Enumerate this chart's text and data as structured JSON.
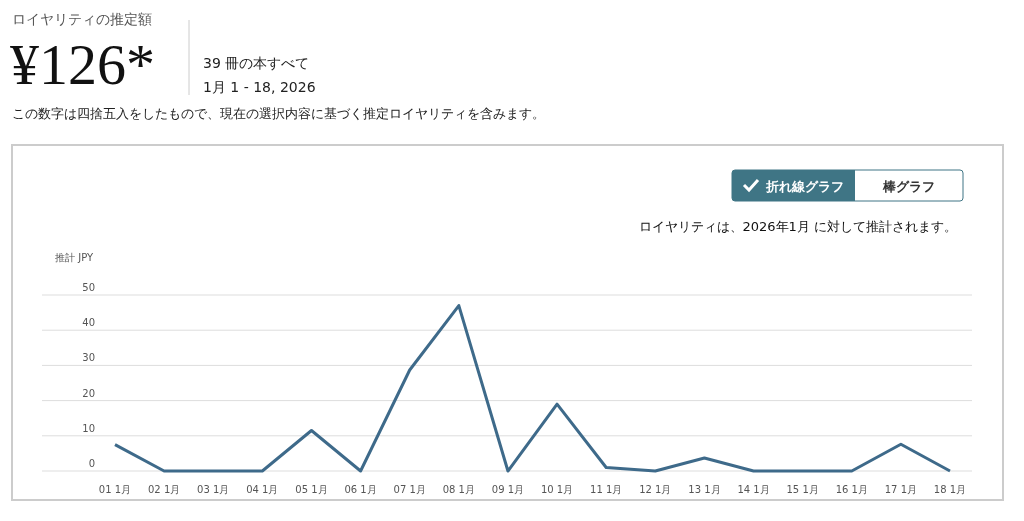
{
  "chart_data": {
    "type": "line",
    "title": "ロイヤリティの推定額",
    "ylabel": "推計 JPY",
    "annotations": [
      "¥126*",
      "39 冊の本すべて",
      "1月 1 - 18, 2026",
      "この数字は四捨五入をしたもので、現在の選択内容に基づく推定ロイヤリティを含みます。",
      "折れ線グラフ",
      "棒グラフ",
      "ロイヤリティは、2026年1月 に対して推計されます。"
    ],
    "categories": [
      "01 1月",
      "02 1月",
      "03 1月",
      "04 1月",
      "05 1月",
      "06 1月",
      "07 1月",
      "08 1月",
      "09 1月",
      "10 1月",
      "11 1月",
      "12 1月",
      "13 1月",
      "14 1月",
      "15 1月",
      "16 1月",
      "17 1月",
      "18 1月"
    ],
    "series": [
      {
        "color": "#3e6a8a",
        "values": [
          7.5,
          0,
          0,
          0,
          11.5,
          0,
          28.7,
          47,
          0,
          19,
          1,
          0,
          3.7,
          0,
          0,
          0,
          7.6,
          0
        ]
      }
    ],
    "ylim": [
      0,
      50
    ],
    "yticks": [
      0,
      10,
      20,
      30,
      40,
      50
    ],
    "grid": "y",
    "marker": "none",
    "line_style": "solid"
  }
}
